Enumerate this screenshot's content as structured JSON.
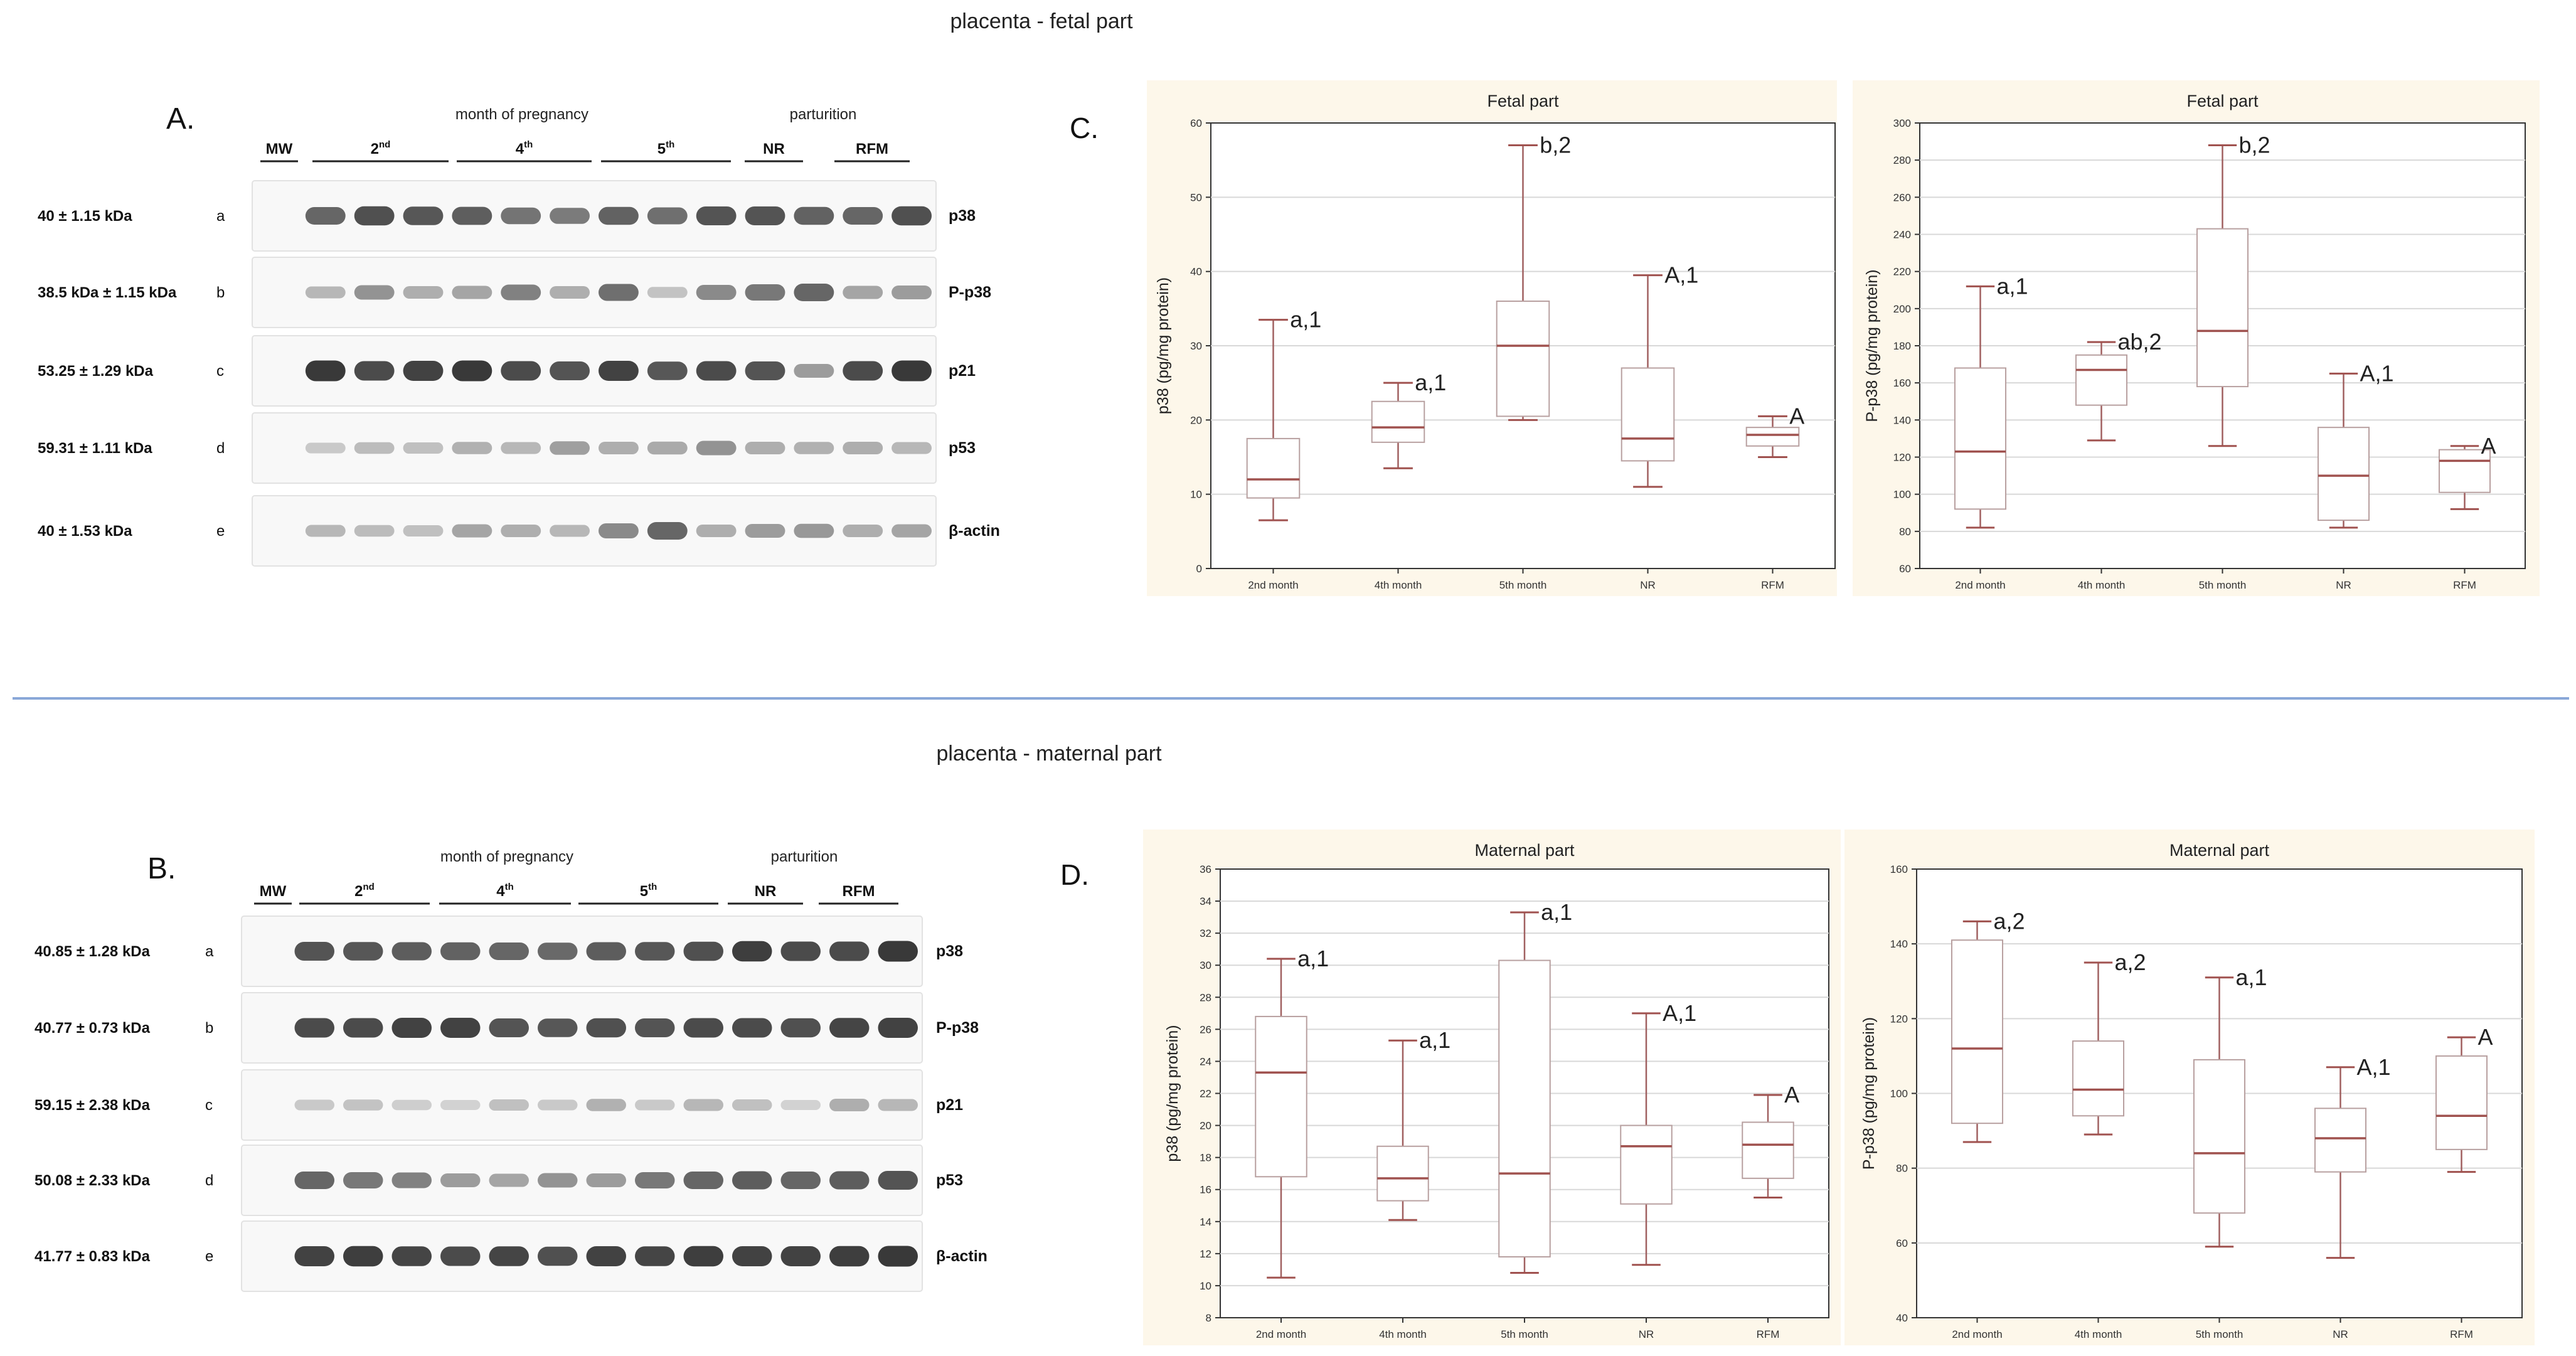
{
  "titles": {
    "top": "placenta - fetal part",
    "bottom": "placenta - maternal part"
  },
  "blots": [
    {
      "letter": "A.",
      "mw": "MW",
      "group_header": "month of pregnancy",
      "parturition": "parturition",
      "lanes": [
        {
          "label": "2",
          "sup": "nd"
        },
        {
          "label": "4",
          "sup": "th"
        },
        {
          "label": "5",
          "sup": "th"
        },
        {
          "label": "NR",
          "sup": ""
        },
        {
          "label": "RFM",
          "sup": ""
        }
      ],
      "rows": [
        {
          "kda": "40 ± 1.15 kDa",
          "letter": "a",
          "protein": "p38",
          "bands": [
            0,
            0.7,
            0.82,
            0.78,
            0.74,
            0.62,
            0.58,
            0.72,
            0.65,
            0.8,
            0.8,
            0.72,
            0.7,
            0.82
          ]
        },
        {
          "kda": "38.5 kDa ± 1.15 kDa",
          "letter": "b",
          "protein": "P-p38",
          "bands": [
            0,
            0.25,
            0.45,
            0.3,
            0.35,
            0.55,
            0.3,
            0.65,
            0.18,
            0.5,
            0.6,
            0.7,
            0.35,
            0.4
          ]
        },
        {
          "kda": "53.25 ± 1.29 kDa",
          "letter": "c",
          "protein": "p21",
          "bands": [
            0,
            0.95,
            0.85,
            0.9,
            0.95,
            0.85,
            0.8,
            0.9,
            0.78,
            0.85,
            0.8,
            0.4,
            0.85,
            0.95
          ]
        },
        {
          "kda": "59.31 ± 1.11 kDa",
          "letter": "d",
          "protein": "p53",
          "bands": [
            0,
            0.15,
            0.22,
            0.2,
            0.28,
            0.25,
            0.38,
            0.3,
            0.32,
            0.45,
            0.3,
            0.28,
            0.3,
            0.25
          ]
        },
        {
          "kda": "40 ± 1.53 kDa",
          "letter": "e",
          "protein": "β-actin",
          "bands": [
            0,
            0.25,
            0.22,
            0.2,
            0.35,
            0.3,
            0.25,
            0.5,
            0.7,
            0.3,
            0.4,
            0.42,
            0.3,
            0.35
          ]
        }
      ]
    },
    {
      "letter": "B.",
      "mw": "MW",
      "group_header": "month of pregnancy",
      "parturition": "parturition",
      "lanes": [
        {
          "label": "2",
          "sup": "nd"
        },
        {
          "label": "4",
          "sup": "th"
        },
        {
          "label": "5",
          "sup": "th"
        },
        {
          "label": "NR",
          "sup": ""
        },
        {
          "label": "RFM",
          "sup": ""
        }
      ],
      "rows": [
        {
          "kda": "40.85 ± 1.28 kDa",
          "letter": "a",
          "protein": "p38",
          "bands": [
            0,
            0.8,
            0.78,
            0.75,
            0.72,
            0.7,
            0.68,
            0.75,
            0.78,
            0.82,
            0.92,
            0.85,
            0.85,
            0.95
          ]
        },
        {
          "kda": "40.77 ± 0.73 kDa",
          "letter": "b",
          "protein": "P-p38",
          "bands": [
            0,
            0.85,
            0.85,
            0.9,
            0.9,
            0.8,
            0.78,
            0.82,
            0.8,
            0.85,
            0.85,
            0.82,
            0.88,
            0.9
          ]
        },
        {
          "kda": "59.15 ± 2.38 kDa",
          "letter": "c",
          "protein": "p21",
          "bands": [
            0,
            0.15,
            0.18,
            0.12,
            0.1,
            0.2,
            0.15,
            0.28,
            0.15,
            0.25,
            0.2,
            0.1,
            0.3,
            0.25
          ]
        },
        {
          "kda": "50.08 ± 2.33 kDa",
          "letter": "d",
          "protein": "p53",
          "bands": [
            0,
            0.7,
            0.6,
            0.55,
            0.4,
            0.35,
            0.45,
            0.4,
            0.6,
            0.7,
            0.75,
            0.7,
            0.75,
            0.8
          ]
        },
        {
          "kda": "41.77 ± 0.83 kDa",
          "letter": "e",
          "protein": "β-actin",
          "bands": [
            0,
            0.9,
            0.92,
            0.88,
            0.85,
            0.88,
            0.82,
            0.9,
            0.88,
            0.92,
            0.9,
            0.9,
            0.92,
            0.95
          ]
        }
      ]
    }
  ],
  "panel_letters": {
    "C": "C.",
    "D": "D."
  },
  "chart_data": [
    {
      "type": "box",
      "title": "Fetal part",
      "xlabel": "",
      "ylabel": "p38 (pg/mg protein)",
      "ylim": [
        0,
        60
      ],
      "ticks": [
        0,
        10,
        20,
        30,
        40,
        50,
        60
      ],
      "grid": true,
      "categories": [
        "2nd month",
        "4th month",
        "5th month",
        "NR",
        "RFM"
      ],
      "boxes": [
        {
          "min": 6.5,
          "q1": 9.5,
          "median": 12,
          "q3": 17.5,
          "max": 33.5,
          "label": "a,1"
        },
        {
          "min": 13.5,
          "q1": 17,
          "median": 19,
          "q3": 22.5,
          "max": 25,
          "label": "a,1"
        },
        {
          "min": 20,
          "q1": 20.5,
          "median": 30,
          "q3": 36,
          "max": 57,
          "label": "b,2"
        },
        {
          "min": 11,
          "q1": 14.5,
          "median": 17.5,
          "q3": 27,
          "max": 39.5,
          "label": "A,1"
        },
        {
          "min": 15,
          "q1": 16.5,
          "median": 18,
          "q3": 19,
          "max": 20.5,
          "label": "A"
        }
      ]
    },
    {
      "type": "box",
      "title": "Fetal part",
      "xlabel": "",
      "ylabel": "P-p38 (pg/mg protein)",
      "ylim": [
        60,
        300
      ],
      "ticks": [
        60,
        80,
        100,
        120,
        140,
        160,
        180,
        200,
        220,
        240,
        260,
        280,
        300
      ],
      "grid": true,
      "categories": [
        "2nd month",
        "4th month",
        "5th month",
        "NR",
        "RFM"
      ],
      "boxes": [
        {
          "min": 82,
          "q1": 92,
          "median": 123,
          "q3": 168,
          "max": 212,
          "label": "a,1"
        },
        {
          "min": 129,
          "q1": 148,
          "median": 167,
          "q3": 175,
          "max": 182,
          "label": "ab,2"
        },
        {
          "min": 126,
          "q1": 158,
          "median": 188,
          "q3": 243,
          "max": 288,
          "label": "b,2"
        },
        {
          "min": 82,
          "q1": 86,
          "median": 110,
          "q3": 136,
          "max": 165,
          "label": "A,1"
        },
        {
          "min": 92,
          "q1": 101,
          "median": 118,
          "q3": 124,
          "max": 126,
          "label": "A"
        }
      ]
    },
    {
      "type": "box",
      "title": "Maternal part",
      "xlabel": "",
      "ylabel": "p38 (pg/mg protein)",
      "ylim": [
        8,
        36
      ],
      "ticks": [
        8,
        10,
        12,
        14,
        16,
        18,
        20,
        22,
        24,
        26,
        28,
        30,
        32,
        34,
        36
      ],
      "grid": true,
      "categories": [
        "2nd month",
        "4th month",
        "5th month",
        "NR",
        "RFM"
      ],
      "boxes": [
        {
          "min": 10.5,
          "q1": 16.8,
          "median": 23.3,
          "q3": 26.8,
          "max": 30.4,
          "label": "a,1"
        },
        {
          "min": 14.1,
          "q1": 15.3,
          "median": 16.7,
          "q3": 18.7,
          "max": 25.3,
          "label": "a,1"
        },
        {
          "min": 10.8,
          "q1": 11.8,
          "median": 17,
          "q3": 30.3,
          "max": 33.3,
          "label": "a,1"
        },
        {
          "min": 11.3,
          "q1": 15.1,
          "median": 18.7,
          "q3": 20,
          "max": 27,
          "label": "A,1"
        },
        {
          "min": 15.5,
          "q1": 16.7,
          "median": 18.8,
          "q3": 20.2,
          "max": 21.9,
          "label": "A"
        }
      ]
    },
    {
      "type": "box",
      "title": "Maternal part",
      "xlabel": "",
      "ylabel": "P-p38 (pg/mg protein)",
      "ylim": [
        40,
        160
      ],
      "ticks": [
        40,
        60,
        80,
        100,
        120,
        140,
        160
      ],
      "grid": true,
      "categories": [
        "2nd month",
        "4th month",
        "5th month",
        "NR",
        "RFM"
      ],
      "boxes": [
        {
          "min": 87,
          "q1": 92,
          "median": 112,
          "q3": 141,
          "max": 146,
          "label": "a,2"
        },
        {
          "min": 89,
          "q1": 94,
          "median": 101,
          "q3": 114,
          "max": 135,
          "label": "a,2"
        },
        {
          "min": 59,
          "q1": 68,
          "median": 84,
          "q3": 109,
          "max": 131,
          "label": "a,1"
        },
        {
          "min": 56,
          "q1": 79,
          "median": 88,
          "q3": 96,
          "max": 107,
          "label": "A,1"
        },
        {
          "min": 79,
          "q1": 85,
          "median": 94,
          "q3": 110,
          "max": 115,
          "label": "A"
        }
      ]
    }
  ],
  "colors": {
    "box": "#a0524f",
    "whisker": "#a06060",
    "chart_bg": "#fdf7ea",
    "divider": "#8aa8d8",
    "grid": "#d8d8d8"
  }
}
